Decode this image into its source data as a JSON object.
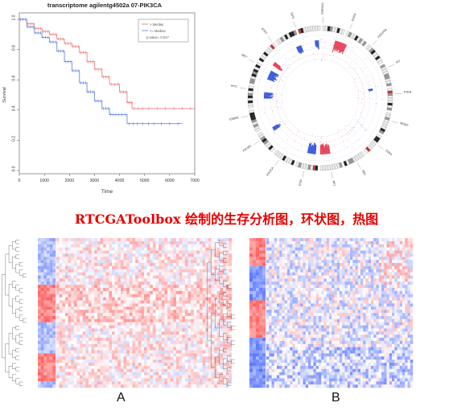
{
  "km": {
    "title": "transcriptome agilentg4502a 07-PIK3CA",
    "xlabel": "Time",
    "ylabel": "Survival",
    "xticks": [
      "0",
      "1000",
      "2000",
      "3000",
      "4000",
      "5000",
      "6000",
      "7000"
    ],
    "yticks": [
      "0.0",
      "0.2",
      "0.4",
      "0.6",
      "0.8",
      "1.0"
    ],
    "legend": [
      {
        "label": "> Median",
        "color": "#f08080"
      },
      {
        "label": "<= Median",
        "color": "#6b8cde"
      }
    ],
    "pvalue": "p-value= 0.017"
  },
  "chart_data": {
    "type": "line",
    "title": "transcriptome agilentg4502a 07-PIK3CA",
    "xlabel": "Time",
    "ylabel": "Survival",
    "xlim": [
      0,
      7000
    ],
    "ylim": [
      0,
      1
    ],
    "series": [
      {
        "name": "> Median",
        "color": "#f08080",
        "x": [
          0,
          300,
          600,
          900,
          1200,
          1500,
          1800,
          2100,
          2400,
          2700,
          3000,
          3300,
          3600,
          4000,
          4300,
          4500,
          5000,
          6000,
          7000
        ],
        "y": [
          1.0,
          0.97,
          0.94,
          0.92,
          0.9,
          0.87,
          0.84,
          0.82,
          0.78,
          0.72,
          0.67,
          0.62,
          0.57,
          0.52,
          0.45,
          0.41,
          0.41,
          0.41,
          0.41
        ]
      },
      {
        "name": "<= Median",
        "color": "#6b8cde",
        "x": [
          0,
          300,
          600,
          900,
          1200,
          1500,
          1800,
          2100,
          2400,
          2700,
          3000,
          3300,
          3600,
          3900,
          4300,
          4800,
          5500,
          6500
        ],
        "y": [
          1.0,
          0.95,
          0.91,
          0.88,
          0.85,
          0.79,
          0.72,
          0.66,
          0.58,
          0.52,
          0.46,
          0.41,
          0.37,
          0.37,
          0.31,
          0.31,
          0.31,
          0.31
        ]
      }
    ]
  },
  "circos": {
    "labels": [
      "CDKN2A",
      "EGFR",
      "PDGFRA",
      "KIT",
      "PTEN",
      "MDM2",
      "CDK4",
      "RB1",
      "NF1",
      "TP53",
      "PIK3CA",
      "PIK3R1",
      "ERBB2",
      "MYC",
      "MET",
      "ATRX",
      "IDH1"
    ]
  },
  "caption": "RTCGAToolbox 绘制的生存分析图，环状图，热图",
  "panelA": "A",
  "panelB": "B",
  "colors": {
    "red": "#e8445a",
    "blue": "#3b5bdb",
    "caption": "#e60000"
  }
}
